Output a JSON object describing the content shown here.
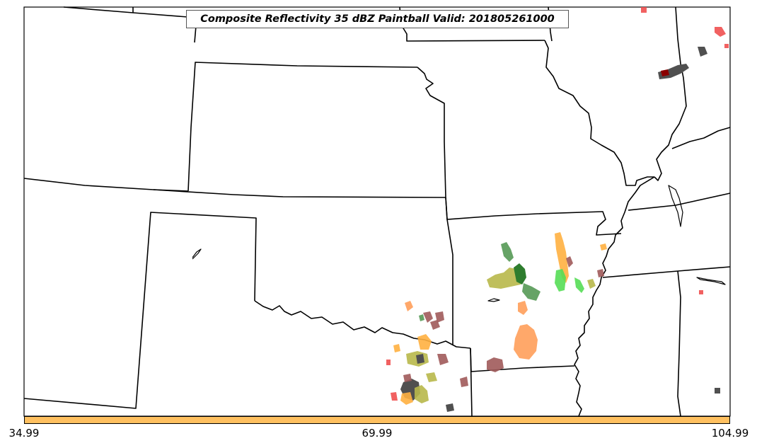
{
  "title": "Composite Reflectivity 35 dBZ Paintball Valid: 201805261000",
  "colorbar": {
    "color": "#ffc060",
    "labels": [
      "34.99",
      "69.99",
      "104.99"
    ]
  },
  "map": {
    "region": "US Central Plains",
    "boundary_color": "#000000",
    "paint_colors": {
      "olive": "#b8b84a",
      "light_orange": "#ff9f5a",
      "orange": "#ffb040",
      "mauve": "#a05a5a",
      "dark_green": "#2e7d2e",
      "green": "#559955",
      "bright_green": "#55dd55",
      "dark_gray": "#505050",
      "red": "#f05050",
      "dark_red": "#8b0000"
    }
  }
}
